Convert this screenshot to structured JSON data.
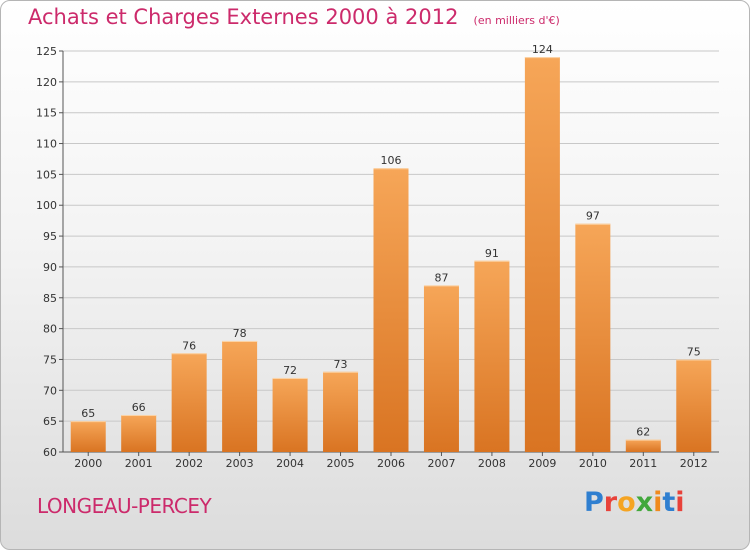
{
  "header": {
    "title": "Achats et Charges Externes 2000 à 2012",
    "unit": "(en milliers d'€)"
  },
  "footer": {
    "location": "LONGEAU-PERCEY",
    "logo_text": "Proxiti"
  },
  "colors": {
    "title": "#cc2a6b",
    "bar_top": "#f6a658",
    "bar_bottom": "#d97422",
    "grid": "#c8c8c8"
  },
  "chart_data": {
    "type": "bar",
    "title": "Achats et Charges Externes 2000 à 2012",
    "subtitle": "(en milliers d'€)",
    "xlabel": "",
    "ylabel": "",
    "categories": [
      "2000",
      "2001",
      "2002",
      "2003",
      "2004",
      "2005",
      "2006",
      "2007",
      "2008",
      "2009",
      "2010",
      "2011",
      "2012"
    ],
    "values": [
      65,
      66,
      76,
      78,
      72,
      73,
      106,
      87,
      91,
      124,
      97,
      62,
      75
    ],
    "ylim": [
      60,
      125
    ],
    "yticks": [
      60,
      65,
      70,
      75,
      80,
      85,
      90,
      95,
      100,
      105,
      110,
      115,
      120,
      125
    ],
    "grid": true,
    "data_labels": true
  }
}
